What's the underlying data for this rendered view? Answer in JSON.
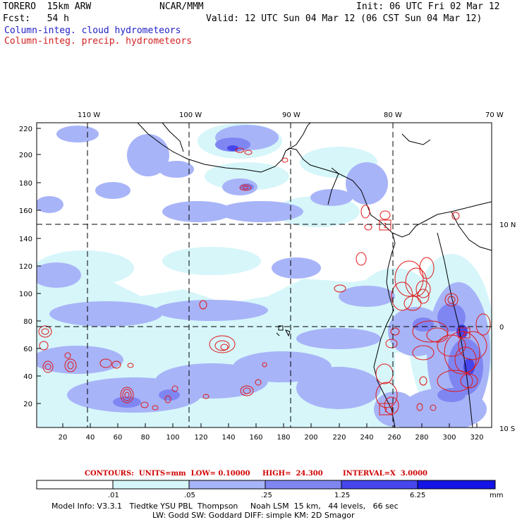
{
  "header": {
    "model_name": "TORERO  15km ARW",
    "org": "NCAR/MMM",
    "init": "Init: 06 UTC Fri 02 Mar 12",
    "fcst": "Fcst:   54 h",
    "valid": "Valid: 12 UTC Sun 04 Mar 12 (06 CST Sun 04 Mar 12)"
  },
  "legend": {
    "cloud": "Column-integ. cloud hydrometeors",
    "precip": "Column-integ. precip. hydrometeors",
    "cloud_color": "#2020c8",
    "precip_color": "#d02020"
  },
  "top_axis": [
    "110 W",
    "100 W",
    "90 W",
    "80 W",
    "70 W"
  ],
  "right_axis": [
    "10 N",
    "0",
    "10 S"
  ],
  "left_axis": [
    "220",
    "200",
    "180",
    "160",
    "140",
    "120",
    "100",
    "80",
    "60",
    "40",
    "20"
  ],
  "bottom_axis": [
    "20",
    "40",
    "60",
    "80",
    "100",
    "120",
    "140",
    "160",
    "180",
    "200",
    "220",
    "240",
    "260",
    "280",
    "300",
    "320"
  ],
  "contours": {
    "units": "CONTOURS:  UNITS=mm  LOW= 0.10000",
    "high": "HIGH=  24.300",
    "interval": "INTERVAL=X  3.0000"
  },
  "colorbar": {
    "levels": [
      ".01",
      ".05",
      ".25",
      "1.25",
      "6.25"
    ],
    "unit": "mm",
    "colors": [
      "#ffffff",
      "#d6f6fa",
      "#a8b4f8",
      "#7f86f2",
      "#4646ec",
      "#1414e6"
    ]
  },
  "model_info": {
    "line1": "Model Info: V3.3.1   Tiedtke YSU PBL  Thompson     Noah LSM  15 km,   44 levels,   66 sec",
    "line2": "LW: Godd SW: Goddard DIFF: simple KM: 2D Smagor"
  },
  "boxes": [
    "1",
    "1",
    "1"
  ]
}
